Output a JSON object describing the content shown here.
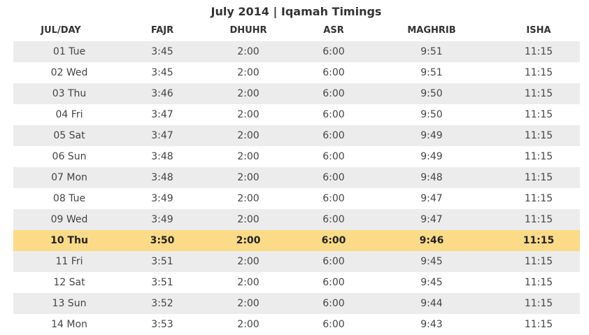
{
  "title": "July 2014 | Iqamah Timings",
  "columns": [
    "JUL/DAY",
    "FAJR",
    "DHUHR",
    "ASR",
    "MAGHRIB",
    "ISHA"
  ],
  "today_index": 9,
  "colors": {
    "stripe": "#ececec",
    "highlight": "#fcdb88"
  },
  "rows": [
    [
      "01 Tue",
      "3:45",
      "2:00",
      "6:00",
      "9:51",
      "11:15"
    ],
    [
      "02 Wed",
      "3:45",
      "2:00",
      "6:00",
      "9:51",
      "11:15"
    ],
    [
      "03 Thu",
      "3:46",
      "2:00",
      "6:00",
      "9:50",
      "11:15"
    ],
    [
      "04 Fri",
      "3:47",
      "2:00",
      "6:00",
      "9:50",
      "11:15"
    ],
    [
      "05 Sat",
      "3:47",
      "2:00",
      "6:00",
      "9:49",
      "11:15"
    ],
    [
      "06 Sun",
      "3:48",
      "2:00",
      "6:00",
      "9:49",
      "11:15"
    ],
    [
      "07 Mon",
      "3:48",
      "2:00",
      "6:00",
      "9:48",
      "11:15"
    ],
    [
      "08 Tue",
      "3:49",
      "2:00",
      "6:00",
      "9:47",
      "11:15"
    ],
    [
      "09 Wed",
      "3:49",
      "2:00",
      "6:00",
      "9:47",
      "11:15"
    ],
    [
      "10 Thu",
      "3:50",
      "2:00",
      "6:00",
      "9:46",
      "11:15"
    ],
    [
      "11 Fri",
      "3:51",
      "2:00",
      "6:00",
      "9:45",
      "11:15"
    ],
    [
      "12 Sat",
      "3:51",
      "2:00",
      "6:00",
      "9:45",
      "11:15"
    ],
    [
      "13 Sun",
      "3:52",
      "2:00",
      "6:00",
      "9:44",
      "11:15"
    ],
    [
      "14 Mon",
      "3:53",
      "2:00",
      "6:00",
      "9:43",
      "11:15"
    ]
  ]
}
